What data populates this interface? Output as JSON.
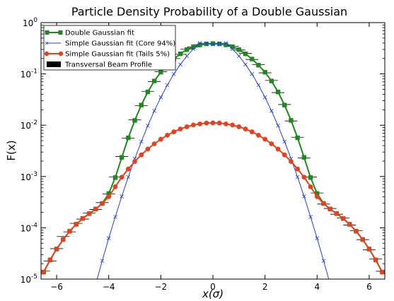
{
  "chart_data": {
    "type": "line",
    "title": "Particle Density Probability of a Double Gaussian",
    "xlabel": "x(σ)",
    "ylabel": "F(x)",
    "xlim": [
      -6.6,
      6.6
    ],
    "ylim": [
      1e-05,
      1
    ],
    "yscale": "log",
    "grid": false,
    "legend_position": "top-left",
    "xticks": [
      -6,
      -4,
      -2,
      0,
      2,
      4,
      6
    ],
    "xtick_labels": [
      "−6",
      "−4",
      "−2",
      "0",
      "2",
      "4",
      "6"
    ],
    "ytick_labels": [
      {
        "value": 1,
        "base": "10",
        "exp": "0"
      },
      {
        "value": 0.1,
        "base": "10",
        "exp": "-1"
      },
      {
        "value": 0.01,
        "base": "10",
        "exp": "-2"
      },
      {
        "value": 0.001,
        "base": "10",
        "exp": "-3"
      },
      {
        "value": 0.0001,
        "base": "10",
        "exp": "-4"
      },
      {
        "value": 1e-05,
        "base": "10",
        "exp": "-5"
      }
    ],
    "series": [
      {
        "name": "Double Gaussian fit",
        "color": "#1e8a1e",
        "marker": "square",
        "points": [
          [
            -6.5,
            1.37e-05
          ],
          [
            -6.25,
            2.37e-05
          ],
          [
            -6.0,
            3.86e-05
          ],
          [
            -5.75,
            5.92e-05
          ],
          [
            -5.5,
            8.57e-05
          ],
          [
            -5.25,
            0.000117
          ],
          [
            -5.0,
            0.000152
          ],
          [
            -4.75,
            0.000189
          ],
          [
            -4.5,
            0.000232
          ],
          [
            -4.25,
            0.000298
          ],
          [
            -4.0,
            0.000466
          ],
          [
            -3.75,
            0.000954
          ],
          [
            -3.5,
            0.00236
          ],
          [
            -3.25,
            0.00569
          ],
          [
            -3.0,
            0.0124
          ],
          [
            -2.75,
            0.0247
          ],
          [
            -2.5,
            0.0445
          ],
          [
            -2.25,
            0.0728
          ],
          [
            -2.0,
            0.108
          ],
          [
            -1.75,
            0.148
          ],
          [
            -1.5,
            0.195
          ],
          [
            -1.25,
            0.246
          ],
          [
            -1.0,
            0.297
          ],
          [
            -0.75,
            0.339
          ],
          [
            -0.5,
            0.368
          ],
          [
            -0.25,
            0.385
          ],
          [
            0.0,
            0.391
          ],
          [
            0.25,
            0.385
          ],
          [
            0.5,
            0.368
          ],
          [
            0.75,
            0.339
          ],
          [
            1.0,
            0.297
          ],
          [
            1.25,
            0.246
          ],
          [
            1.5,
            0.195
          ],
          [
            1.75,
            0.148
          ],
          [
            2.0,
            0.108
          ],
          [
            2.25,
            0.0728
          ],
          [
            2.5,
            0.0445
          ],
          [
            2.75,
            0.0247
          ],
          [
            3.0,
            0.0124
          ],
          [
            3.25,
            0.00569
          ],
          [
            3.5,
            0.00236
          ],
          [
            3.75,
            0.000954
          ],
          [
            4.0,
            0.000466
          ],
          [
            4.25,
            0.000298
          ],
          [
            4.5,
            0.000232
          ],
          [
            4.75,
            0.000189
          ],
          [
            5.0,
            0.000152
          ],
          [
            5.25,
            0.000117
          ],
          [
            5.5,
            8.57e-05
          ],
          [
            5.75,
            5.92e-05
          ],
          [
            6.0,
            3.86e-05
          ],
          [
            6.25,
            2.37e-05
          ],
          [
            6.5,
            1.37e-05
          ]
        ]
      },
      {
        "name": "Simple Gaussian fit (Core 94%)",
        "color": "#1f3fe0",
        "marker": "x",
        "points": [
          [
            -4.5,
            8.02e-06
          ],
          [
            -4.25,
            2.27e-05
          ],
          [
            -4.0,
            6.26e-05
          ],
          [
            -3.75,
            0.000163
          ],
          [
            -3.5,
            0.00041
          ],
          [
            -3.25,
            0.000978
          ],
          [
            -3.0,
            0.00222
          ],
          [
            -2.75,
            0.00478
          ],
          [
            -2.5,
            0.00979
          ],
          [
            -2.25,
            0.019
          ],
          [
            -2.0,
            0.035
          ],
          [
            -1.75,
            0.0606
          ],
          [
            -1.5,
            0.0994
          ],
          [
            -1.25,
            0.153
          ],
          [
            -1.0,
            0.223
          ],
          [
            -0.75,
            0.306
          ],
          [
            -0.5,
            0.399
          ],
          [
            -0.25,
            0.391
          ],
          [
            0.0,
            0.375
          ],
          [
            0.25,
            0.391
          ],
          [
            0.5,
            0.399
          ],
          [
            0.75,
            0.306
          ],
          [
            1.0,
            0.223
          ],
          [
            1.25,
            0.153
          ],
          [
            1.5,
            0.0994
          ],
          [
            1.75,
            0.0606
          ],
          [
            2.0,
            0.035
          ],
          [
            2.25,
            0.019
          ],
          [
            2.5,
            0.00979
          ],
          [
            2.75,
            0.00478
          ],
          [
            3.0,
            0.00222
          ],
          [
            3.25,
            0.000978
          ],
          [
            3.5,
            0.00041
          ],
          [
            3.75,
            0.000163
          ],
          [
            4.0,
            6.26e-05
          ],
          [
            4.25,
            2.27e-05
          ],
          [
            4.5,
            8.02e-06
          ]
        ]
      },
      {
        "name": "Simple Gaussian fit (Tails 5%)",
        "color": "#e8401c",
        "marker": "circle",
        "points": [
          [
            -6.5,
            1.37e-05
          ],
          [
            -6.25,
            2.37e-05
          ],
          [
            -6.0,
            3.86e-05
          ],
          [
            -5.75,
            5.92e-05
          ],
          [
            -5.5,
            8.57e-05
          ],
          [
            -5.25,
            0.000117
          ],
          [
            -5.0,
            0.000152
          ],
          [
            -4.75,
            0.000189
          ],
          [
            -4.5,
            0.000232
          ],
          [
            -4.25,
            0.000298
          ],
          [
            -4.0,
            0.000404
          ],
          [
            -3.75,
            0.00063
          ],
          [
            -3.5,
            0.00097
          ],
          [
            -3.25,
            0.0014
          ],
          [
            -3.0,
            0.00196
          ],
          [
            -2.75,
            0.00264
          ],
          [
            -2.5,
            0.00343
          ],
          [
            -2.25,
            0.00434
          ],
          [
            -2.0,
            0.00533
          ],
          [
            -1.75,
            0.00638
          ],
          [
            -1.5,
            0.00743
          ],
          [
            -1.25,
            0.00843
          ],
          [
            -1.0,
            0.00932
          ],
          [
            -0.75,
            0.0101
          ],
          [
            -0.5,
            0.0106
          ],
          [
            -0.25,
            0.011
          ],
          [
            0.0,
            0.0111
          ],
          [
            0.25,
            0.011
          ],
          [
            0.5,
            0.0106
          ],
          [
            0.75,
            0.0101
          ],
          [
            1.0,
            0.00932
          ],
          [
            1.25,
            0.00843
          ],
          [
            1.5,
            0.00743
          ],
          [
            1.75,
            0.00638
          ],
          [
            2.0,
            0.00533
          ],
          [
            2.25,
            0.00434
          ],
          [
            2.5,
            0.00343
          ],
          [
            2.75,
            0.00264
          ],
          [
            3.0,
            0.00196
          ],
          [
            3.25,
            0.0014
          ],
          [
            3.5,
            0.00097
          ],
          [
            3.75,
            0.00063
          ],
          [
            4.0,
            0.000404
          ],
          [
            4.25,
            0.000298
          ],
          [
            4.5,
            0.000232
          ],
          [
            4.75,
            0.000189
          ],
          [
            5.0,
            0.000152
          ],
          [
            5.25,
            0.000117
          ],
          [
            5.5,
            8.57e-05
          ],
          [
            5.75,
            5.92e-05
          ],
          [
            6.0,
            3.86e-05
          ],
          [
            6.25,
            2.37e-05
          ],
          [
            6.5,
            1.37e-05
          ]
        ]
      },
      {
        "name": "Transversal Beam Profile",
        "color": "#000000",
        "marker": "hbar",
        "points": [
          [
            -6.5,
            1.43e-05
          ],
          [
            -6.25,
            2.26e-05
          ],
          [
            -6.0,
            3.92e-05
          ],
          [
            -5.75,
            6.76e-05
          ],
          [
            -5.5,
            8.33e-05
          ],
          [
            -5.25,
            0.000122
          ],
          [
            -5.0,
            0.000148
          ],
          [
            -4.75,
            0.000195
          ],
          [
            -4.5,
            0.000227
          ],
          [
            -4.25,
            0.000309
          ],
          [
            -4.0,
            0.000455
          ],
          [
            -3.75,
            0.000985
          ],
          [
            -3.5,
            0.00246
          ],
          [
            -3.25,
            0.00556
          ],
          [
            -3.0,
            0.0127
          ],
          [
            -2.75,
            0.0241
          ],
          [
            -2.5,
            0.0458
          ],
          [
            -2.25,
            0.0712
          ],
          [
            -2.0,
            0.111
          ],
          [
            -1.75,
            0.145
          ],
          [
            -1.5,
            0.199
          ],
          [
            -1.25,
            0.241
          ],
          [
            -1.0,
            0.302
          ],
          [
            -0.75,
            0.335
          ],
          [
            -0.5,
            0.372
          ],
          [
            -0.25,
            0.381
          ],
          [
            0.0,
            0.395
          ],
          [
            0.25,
            0.38
          ],
          [
            0.5,
            0.371
          ],
          [
            0.75,
            0.344
          ],
          [
            1.0,
            0.292
          ],
          [
            1.25,
            0.25
          ],
          [
            1.5,
            0.191
          ],
          [
            1.75,
            0.151
          ],
          [
            2.0,
            0.105
          ],
          [
            2.25,
            0.0745
          ],
          [
            2.5,
            0.0432
          ],
          [
            2.75,
            0.0253
          ],
          [
            3.0,
            0.0121
          ],
          [
            3.25,
            0.00582
          ],
          [
            3.5,
            0.00229
          ],
          [
            3.75,
            0.000972
          ],
          [
            4.0,
            0.000477
          ],
          [
            4.25,
            0.00029
          ],
          [
            4.5,
            0.000238
          ],
          [
            4.75,
            0.000184
          ],
          [
            5.0,
            0.000156
          ],
          [
            5.25,
            0.000113
          ],
          [
            5.5,
            8.79e-05
          ],
          [
            5.75,
            5.87e-05
          ],
          [
            6.0,
            3.71e-05
          ],
          [
            6.25,
            2.46e-05
          ],
          [
            6.5,
            1.42e-05
          ]
        ]
      }
    ]
  }
}
